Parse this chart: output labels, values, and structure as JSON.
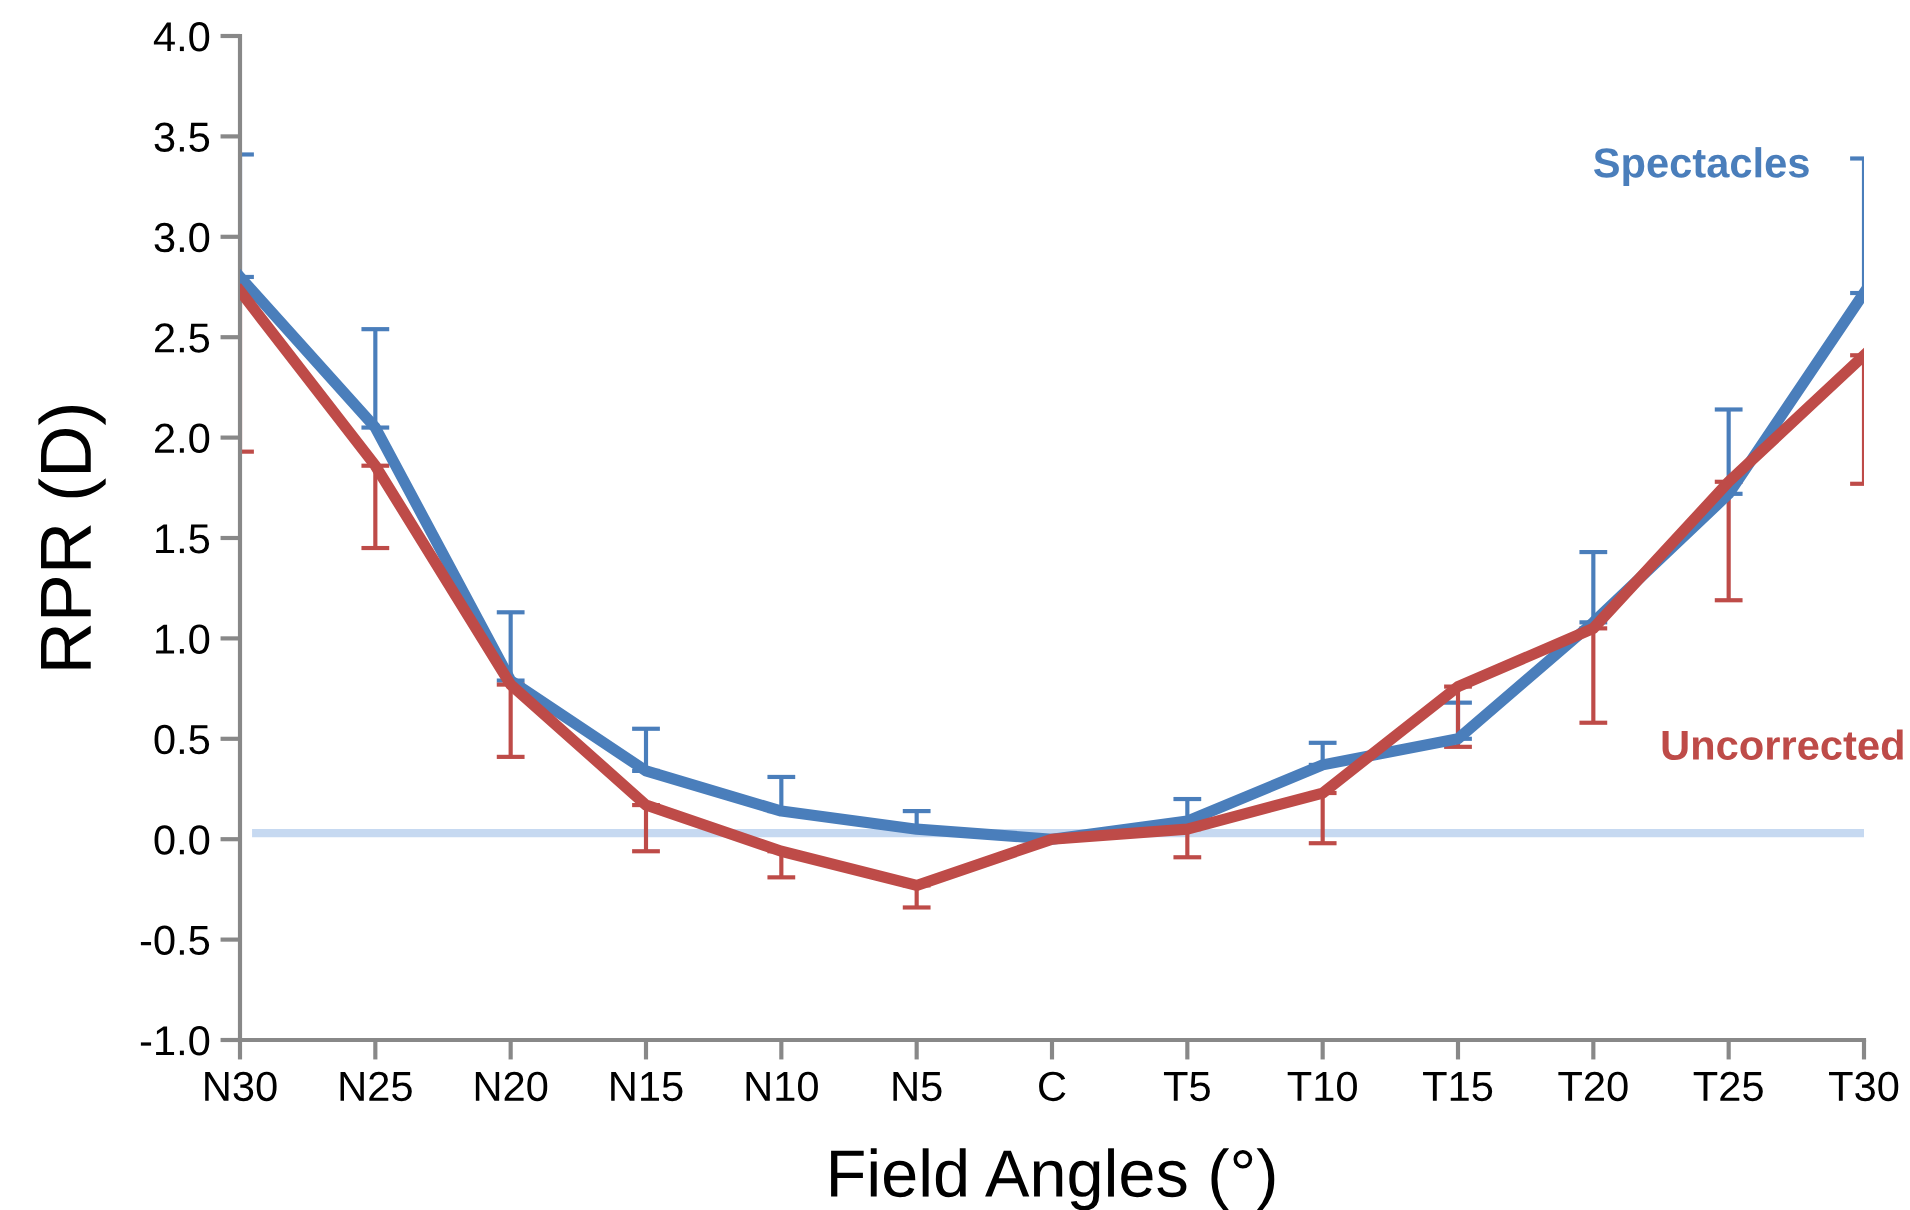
{
  "chart_data": {
    "type": "line",
    "xlabel": "Field Angles (°)",
    "ylabel": "RPR (D)",
    "categories": [
      "N30",
      "N25",
      "N20",
      "N15",
      "N10",
      "N5",
      "C",
      "T5",
      "T10",
      "T15",
      "T20",
      "T25",
      "T30"
    ],
    "series": [
      {
        "name": "Spectacles",
        "color": "#4a7ebb",
        "values": [
          2.8,
          2.05,
          0.79,
          0.34,
          0.14,
          0.05,
          0.0,
          0.09,
          0.37,
          0.5,
          1.08,
          1.72,
          2.72
        ],
        "errors": [
          [
            2.8,
            3.41
          ],
          [
            2.05,
            2.54
          ],
          [
            0.79,
            1.13
          ],
          [
            0.34,
            0.55
          ],
          [
            0.14,
            0.31
          ],
          [
            0.05,
            0.14
          ],
          null,
          [
            0.09,
            0.2
          ],
          [
            0.37,
            0.48
          ],
          [
            0.5,
            0.68
          ],
          [
            1.08,
            1.43
          ],
          [
            1.72,
            2.14
          ],
          [
            2.72,
            3.39
          ]
        ]
      },
      {
        "name": "Uncorrected",
        "color": "#be4b48",
        "values": [
          2.73,
          1.86,
          0.77,
          0.17,
          -0.06,
          -0.23,
          0.0,
          0.05,
          0.23,
          0.76,
          1.05,
          1.78,
          2.41
        ],
        "errors": [
          [
            1.93,
            2.73
          ],
          [
            1.45,
            1.86
          ],
          [
            0.41,
            0.77
          ],
          [
            -0.06,
            0.17
          ],
          [
            -0.19,
            -0.06
          ],
          [
            -0.34,
            -0.23
          ],
          null,
          [
            -0.09,
            0.05
          ],
          [
            -0.02,
            0.23
          ],
          [
            0.46,
            0.76
          ],
          [
            0.58,
            1.05
          ],
          [
            1.19,
            1.78
          ],
          [
            1.77,
            2.41
          ]
        ]
      }
    ],
    "ylim": [
      -1,
      4
    ],
    "yticks": [
      {
        "value": -1,
        "label": "-1.0"
      },
      {
        "value": -0.5,
        "label": "-0.5"
      },
      {
        "value": 0,
        "label": "0.0"
      },
      {
        "value": 0.5,
        "label": "0.5"
      },
      {
        "value": 1,
        "label": "1.0"
      },
      {
        "value": 1.5,
        "label": "1.5"
      },
      {
        "value": 2,
        "label": "2.0"
      },
      {
        "value": 2.5,
        "label": "2.5"
      },
      {
        "value": 3,
        "label": "3.0"
      },
      {
        "value": 3.5,
        "label": "3.5"
      },
      {
        "value": 4,
        "label": "4.0"
      }
    ],
    "ref_lines": [
      {
        "axis": "y",
        "value": 0.03,
        "label": null,
        "color": "#c6d9f1"
      }
    ],
    "grid": false,
    "legend": "right",
    "marker": "none",
    "line_style": "solid"
  }
}
